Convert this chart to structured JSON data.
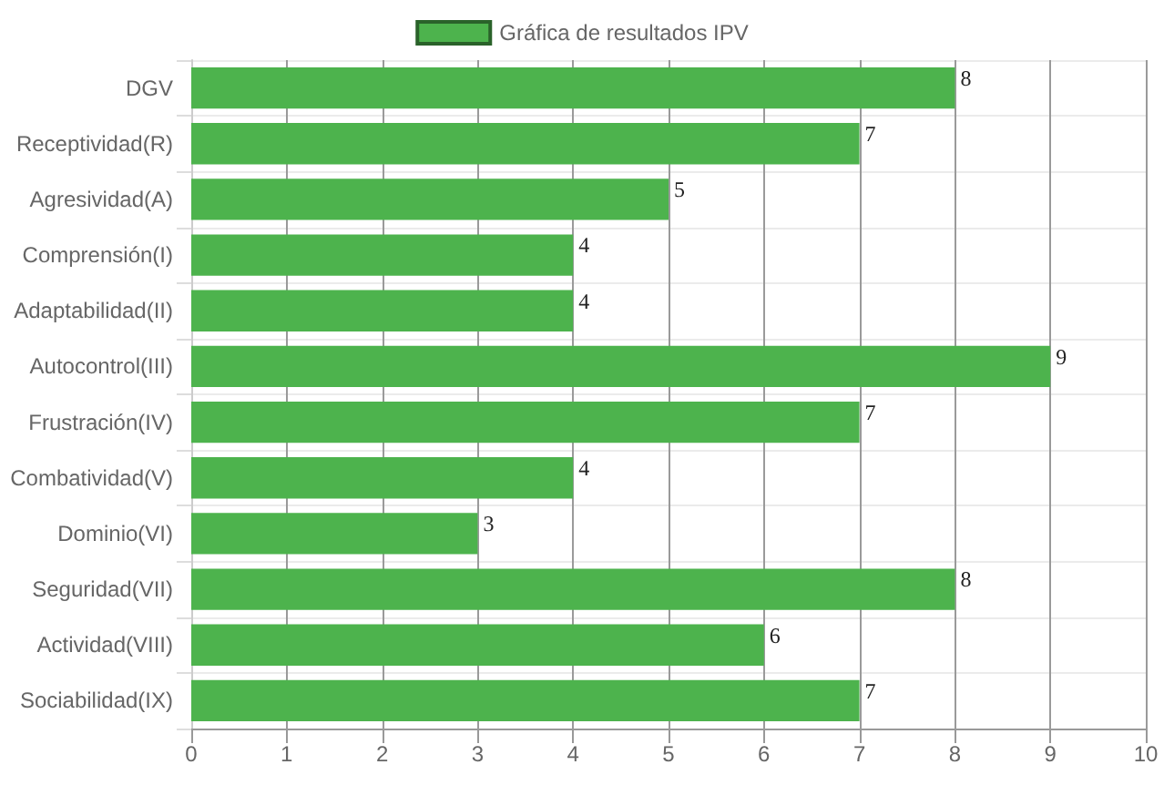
{
  "chart_data": {
    "type": "bar",
    "orientation": "horizontal",
    "categories": [
      "DGV",
      "Receptividad(R)",
      "Agresividad(A)",
      "Comprensión(I)",
      "Adaptabilidad(II)",
      "Autocontrol(III)",
      "Frustración(IV)",
      "Combatividad(V)",
      "Dominio(VI)",
      "Seguridad(VII)",
      "Actividad(VIII)",
      "Sociabilidad(IX)"
    ],
    "series": [
      {
        "name": "Gráfica de resultados IPV",
        "color": "#4db34d",
        "values": [
          8,
          7,
          5,
          4,
          4,
          9,
          7,
          4,
          3,
          8,
          6,
          7
        ]
      }
    ],
    "xlim": [
      0,
      10
    ],
    "xticks": [
      0,
      1,
      2,
      3,
      4,
      5,
      6,
      7,
      8,
      9,
      10
    ],
    "grid": true,
    "legend": "top",
    "data_labels": true
  }
}
